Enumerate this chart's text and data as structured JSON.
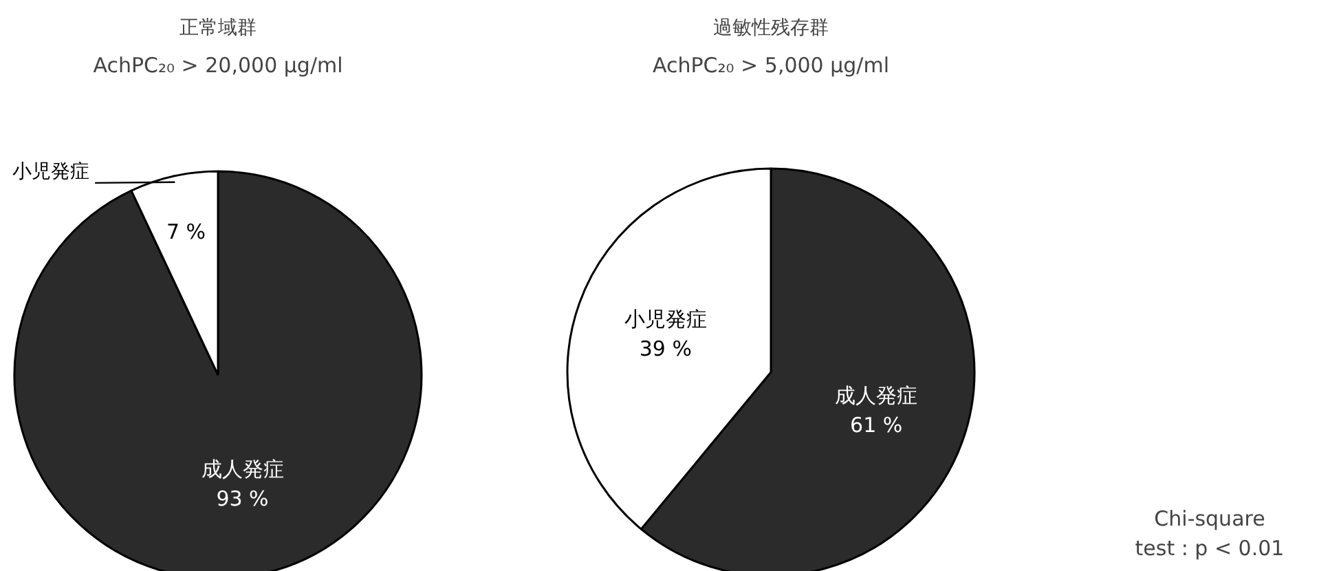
{
  "chart_data": [
    {
      "type": "pie",
      "title": "正常域群",
      "subtitle": "AchPC₂₀ > 20,000 μg/ml",
      "categories": [
        "成人発症",
        "小児発症"
      ],
      "values": [
        93,
        7
      ],
      "colors": [
        "#2b2b2b",
        "#ffffff"
      ],
      "value_labels": [
        "93 %",
        "7 %"
      ]
    },
    {
      "type": "pie",
      "title": "過敏性残存群",
      "subtitle": "AchPC₂₀ > 5,000 μg/ml",
      "categories": [
        "成人発症",
        "小児発症"
      ],
      "values": [
        61,
        39
      ],
      "colors": [
        "#2b2b2b",
        "#ffffff"
      ],
      "value_labels": [
        "61 %",
        "39 %"
      ],
      "annotations": [
        "Chi-square\ntest : p < 0.01"
      ]
    }
  ]
}
